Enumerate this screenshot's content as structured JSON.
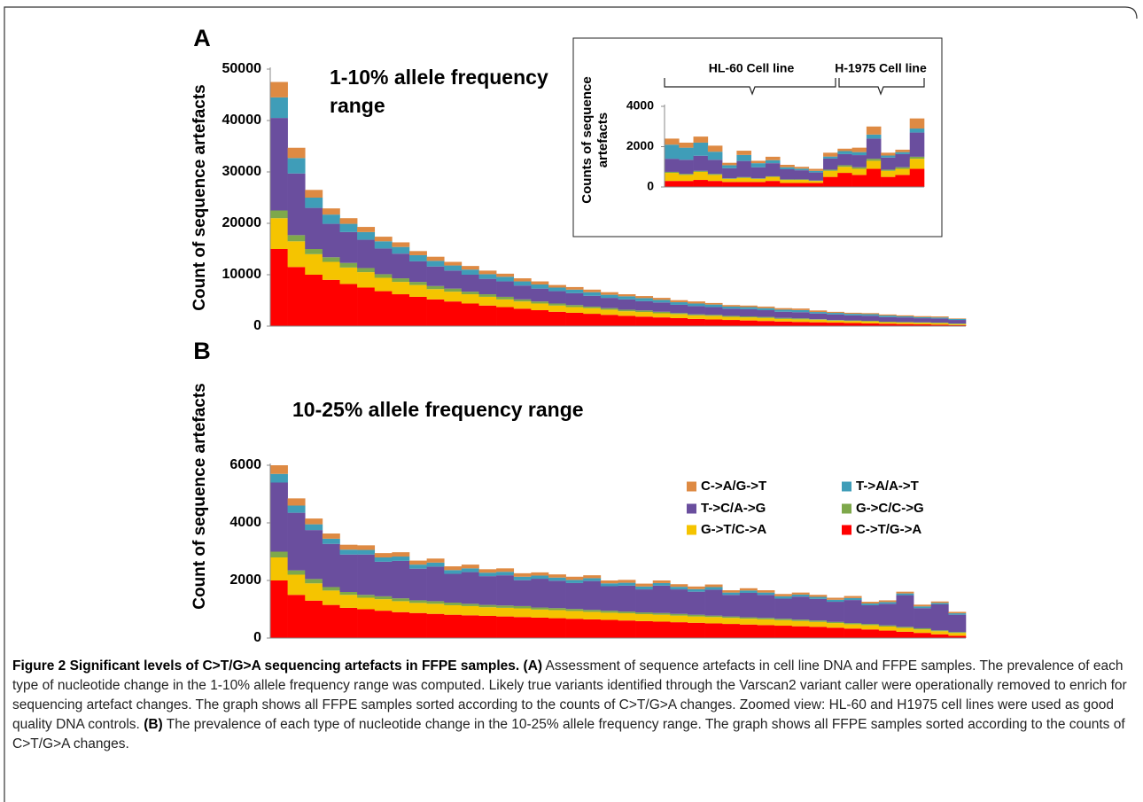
{
  "chart_data": [
    {
      "type": "bar",
      "stacked": true,
      "panel": "A",
      "title": "1-10% allele frequency range",
      "y_label": "Count of sequence artefacts",
      "ylim": [
        0,
        50000
      ],
      "yticks": [
        0,
        10000,
        20000,
        30000,
        40000,
        50000
      ],
      "series": [
        {
          "color": "#de8a43",
          "values": [
            3000,
            2000,
            1500,
            1200,
            1100,
            1000,
            900,
            900,
            800,
            800,
            700,
            700,
            700,
            600,
            600,
            600,
            500,
            500,
            500,
            500,
            400,
            400,
            400,
            400,
            400,
            300,
            300,
            300,
            300,
            300,
            300,
            300,
            200,
            200,
            200,
            200,
            200,
            200,
            200,
            100
          ]
        },
        {
          "color": "#3f9db8",
          "values": [
            4000,
            3000,
            2000,
            1800,
            1600,
            1500,
            1400,
            1300,
            1200,
            1100,
            1000,
            1000,
            900,
            900,
            800,
            800,
            700,
            700,
            700,
            600,
            600,
            600,
            500,
            500,
            500,
            500,
            400,
            400,
            400,
            400,
            400,
            300,
            300,
            300,
            300,
            300,
            200,
            200,
            200,
            200
          ]
        },
        {
          "color": "#6a4e9e",
          "values": [
            18000,
            12000,
            8000,
            6500,
            6000,
            5500,
            5000,
            4800,
            4000,
            3800,
            3500,
            3300,
            3000,
            3000,
            2700,
            2500,
            2400,
            2300,
            2100,
            2000,
            2000,
            1800,
            1800,
            1600,
            1600,
            1500,
            1400,
            1400,
            1300,
            1200,
            1200,
            1100,
            1100,
            1000,
            1000,
            900,
            900,
            800,
            800,
            700
          ]
        },
        {
          "color": "#7ea84b",
          "values": [
            1500,
            1200,
            1000,
            900,
            900,
            800,
            700,
            700,
            600,
            600,
            600,
            500,
            500,
            500,
            400,
            400,
            400,
            400,
            300,
            300,
            300,
            300,
            300,
            200,
            200,
            200,
            200,
            200,
            200,
            200,
            200,
            100,
            100,
            100,
            100,
            100,
            100,
            100,
            100,
            100
          ]
        },
        {
          "color": "#f5c400",
          "values": [
            6000,
            5000,
            4000,
            3500,
            3200,
            3000,
            2600,
            2400,
            2300,
            2000,
            1900,
            1800,
            1700,
            1500,
            1400,
            1300,
            1200,
            1100,
            1100,
            1000,
            900,
            900,
            800,
            800,
            700,
            700,
            600,
            600,
            600,
            500,
            500,
            500,
            400,
            400,
            400,
            300,
            300,
            300,
            300,
            200
          ]
        },
        {
          "color": "#ff0000",
          "values": [
            15000,
            11500,
            10000,
            9000,
            8200,
            7500,
            6800,
            6200,
            5700,
            5200,
            4800,
            4400,
            4000,
            3700,
            3400,
            3100,
            2800,
            2600,
            2400,
            2200,
            2000,
            1850,
            1700,
            1550,
            1400,
            1300,
            1200,
            1100,
            1000,
            900,
            820,
            750,
            680,
            600,
            530,
            460,
            400,
            340,
            280,
            200
          ]
        }
      ]
    },
    {
      "type": "bar",
      "stacked": true,
      "y_label": "Counts of sequence artefacts",
      "annotations": [
        "HL-60 Cell line",
        "H-1975 Cell line"
      ],
      "ylim": [
        0,
        4000
      ],
      "yticks": [
        0,
        2000,
        4000
      ],
      "series": [
        {
          "color": "#de8a43",
          "values": [
            300,
            250,
            300,
            300,
            120,
            210,
            120,
            170,
            120,
            90,
            100,
            190,
            120,
            220,
            400,
            140,
            120,
            500
          ]
        },
        {
          "color": "#3f9db8",
          "values": [
            700,
            600,
            650,
            400,
            150,
            300,
            200,
            150,
            100,
            80,
            80,
            100,
            150,
            150,
            200,
            100,
            100,
            200
          ]
        },
        {
          "color": "#6a4e9e",
          "values": [
            650,
            700,
            750,
            700,
            500,
            800,
            550,
            650,
            500,
            450,
            400,
            550,
            550,
            600,
            1000,
            600,
            650,
            1200
          ]
        },
        {
          "color": "#7ea84b",
          "values": [
            50,
            50,
            50,
            50,
            30,
            40,
            30,
            30,
            30,
            30,
            20,
            60,
            80,
            80,
            100,
            60,
            80,
            100
          ]
        },
        {
          "color": "#f5c400",
          "values": [
            400,
            300,
            400,
            300,
            150,
            200,
            150,
            200,
            150,
            150,
            100,
            300,
            300,
            300,
            400,
            300,
            300,
            500
          ]
        },
        {
          "color": "#ff0000",
          "values": [
            300,
            300,
            350,
            300,
            250,
            250,
            250,
            300,
            200,
            200,
            200,
            500,
            700,
            600,
            900,
            500,
            600,
            900
          ]
        }
      ]
    },
    {
      "type": "bar",
      "stacked": true,
      "panel": "B",
      "title": "10-25% allele frequency range",
      "y_label": "Count of sequence artefacts",
      "ylim": [
        0,
        6000
      ],
      "yticks": [
        0,
        2000,
        4000,
        6000
      ],
      "legend": "right",
      "series": [
        {
          "name": "C->A/G->T",
          "color": "#de8a43",
          "values": [
            300,
            250,
            200,
            180,
            170,
            160,
            150,
            150,
            140,
            140,
            130,
            130,
            120,
            120,
            120,
            110,
            110,
            110,
            100,
            100,
            100,
            100,
            90,
            90,
            90,
            90,
            80,
            80,
            80,
            80,
            70,
            70,
            70,
            70,
            60,
            60,
            60,
            60,
            50,
            50
          ]
        },
        {
          "name": "T->A/A->T",
          "color": "#3f9db8",
          "values": [
            300,
            250,
            200,
            180,
            170,
            160,
            150,
            150,
            140,
            140,
            130,
            130,
            120,
            120,
            120,
            110,
            110,
            110,
            100,
            100,
            100,
            100,
            90,
            90,
            90,
            90,
            80,
            80,
            80,
            80,
            70,
            70,
            70,
            70,
            60,
            60,
            60,
            60,
            50,
            50
          ]
        },
        {
          "name": "T->C/A->G",
          "color": "#6a4e9e",
          "values": [
            2400,
            2000,
            1700,
            1500,
            1300,
            1400,
            1200,
            1300,
            1100,
            1200,
            1000,
            1100,
            1000,
            1050,
            900,
            1000,
            950,
            900,
            1000,
            850,
            900,
            800,
            950,
            850,
            800,
            900,
            750,
            850,
            800,
            700,
            800,
            750,
            700,
            800,
            650,
            750,
            1100,
            700,
            900,
            600
          ]
        },
        {
          "name": "G->C/C->G",
          "color": "#7ea84b",
          "values": [
            200,
            150,
            150,
            120,
            100,
            100,
            100,
            100,
            90,
            90,
            90,
            80,
            80,
            80,
            80,
            70,
            70,
            70,
            70,
            70,
            60,
            60,
            60,
            60,
            60,
            50,
            50,
            50,
            50,
            50,
            50,
            50,
            40,
            40,
            40,
            40,
            40,
            40,
            30,
            30
          ]
        },
        {
          "name": "G->T/C->A",
          "color": "#f5c400",
          "values": [
            800,
            700,
            600,
            500,
            450,
            400,
            400,
            380,
            350,
            350,
            330,
            320,
            300,
            300,
            300,
            280,
            280,
            270,
            260,
            250,
            250,
            240,
            240,
            230,
            220,
            220,
            210,
            200,
            200,
            190,
            180,
            170,
            160,
            150,
            150,
            140,
            130,
            120,
            110,
            100
          ]
        },
        {
          "name": "C->T/G->A",
          "color": "#ff0000",
          "values": [
            2000,
            1500,
            1300,
            1150,
            1050,
            1000,
            950,
            900,
            870,
            840,
            810,
            790,
            770,
            750,
            730,
            710,
            690,
            670,
            650,
            630,
            610,
            590,
            570,
            550,
            530,
            510,
            490,
            470,
            450,
            430,
            410,
            390,
            360,
            330,
            300,
            260,
            220,
            180,
            130,
            80
          ]
        }
      ]
    }
  ],
  "caption": {
    "title": "Figure 2 Significant levels of C>T/G>A sequencing artefacts in FFPE samples.",
    "parts": [
      {
        "label": "(A)",
        "text": "Assessment of sequence artefacts in cell line DNA and FFPE samples. The prevalence of each type of nucleotide change in the 1-10% allele frequency range was computed. Likely true variants identified through the Varscan2 variant caller were operationally removed to enrich for sequencing artefact changes. The graph shows all FFPE samples sorted according to the counts of C>T/G>A changes. Zoomed view: HL-60 and H1975 cell lines were used as good quality DNA controls."
      },
      {
        "label": "(B)",
        "text": "The prevalence of each type of nucleotide change in the 10-25% allele frequency range. The graph shows all FFPE samples sorted according to the counts of C>T/G>A changes."
      }
    ]
  }
}
